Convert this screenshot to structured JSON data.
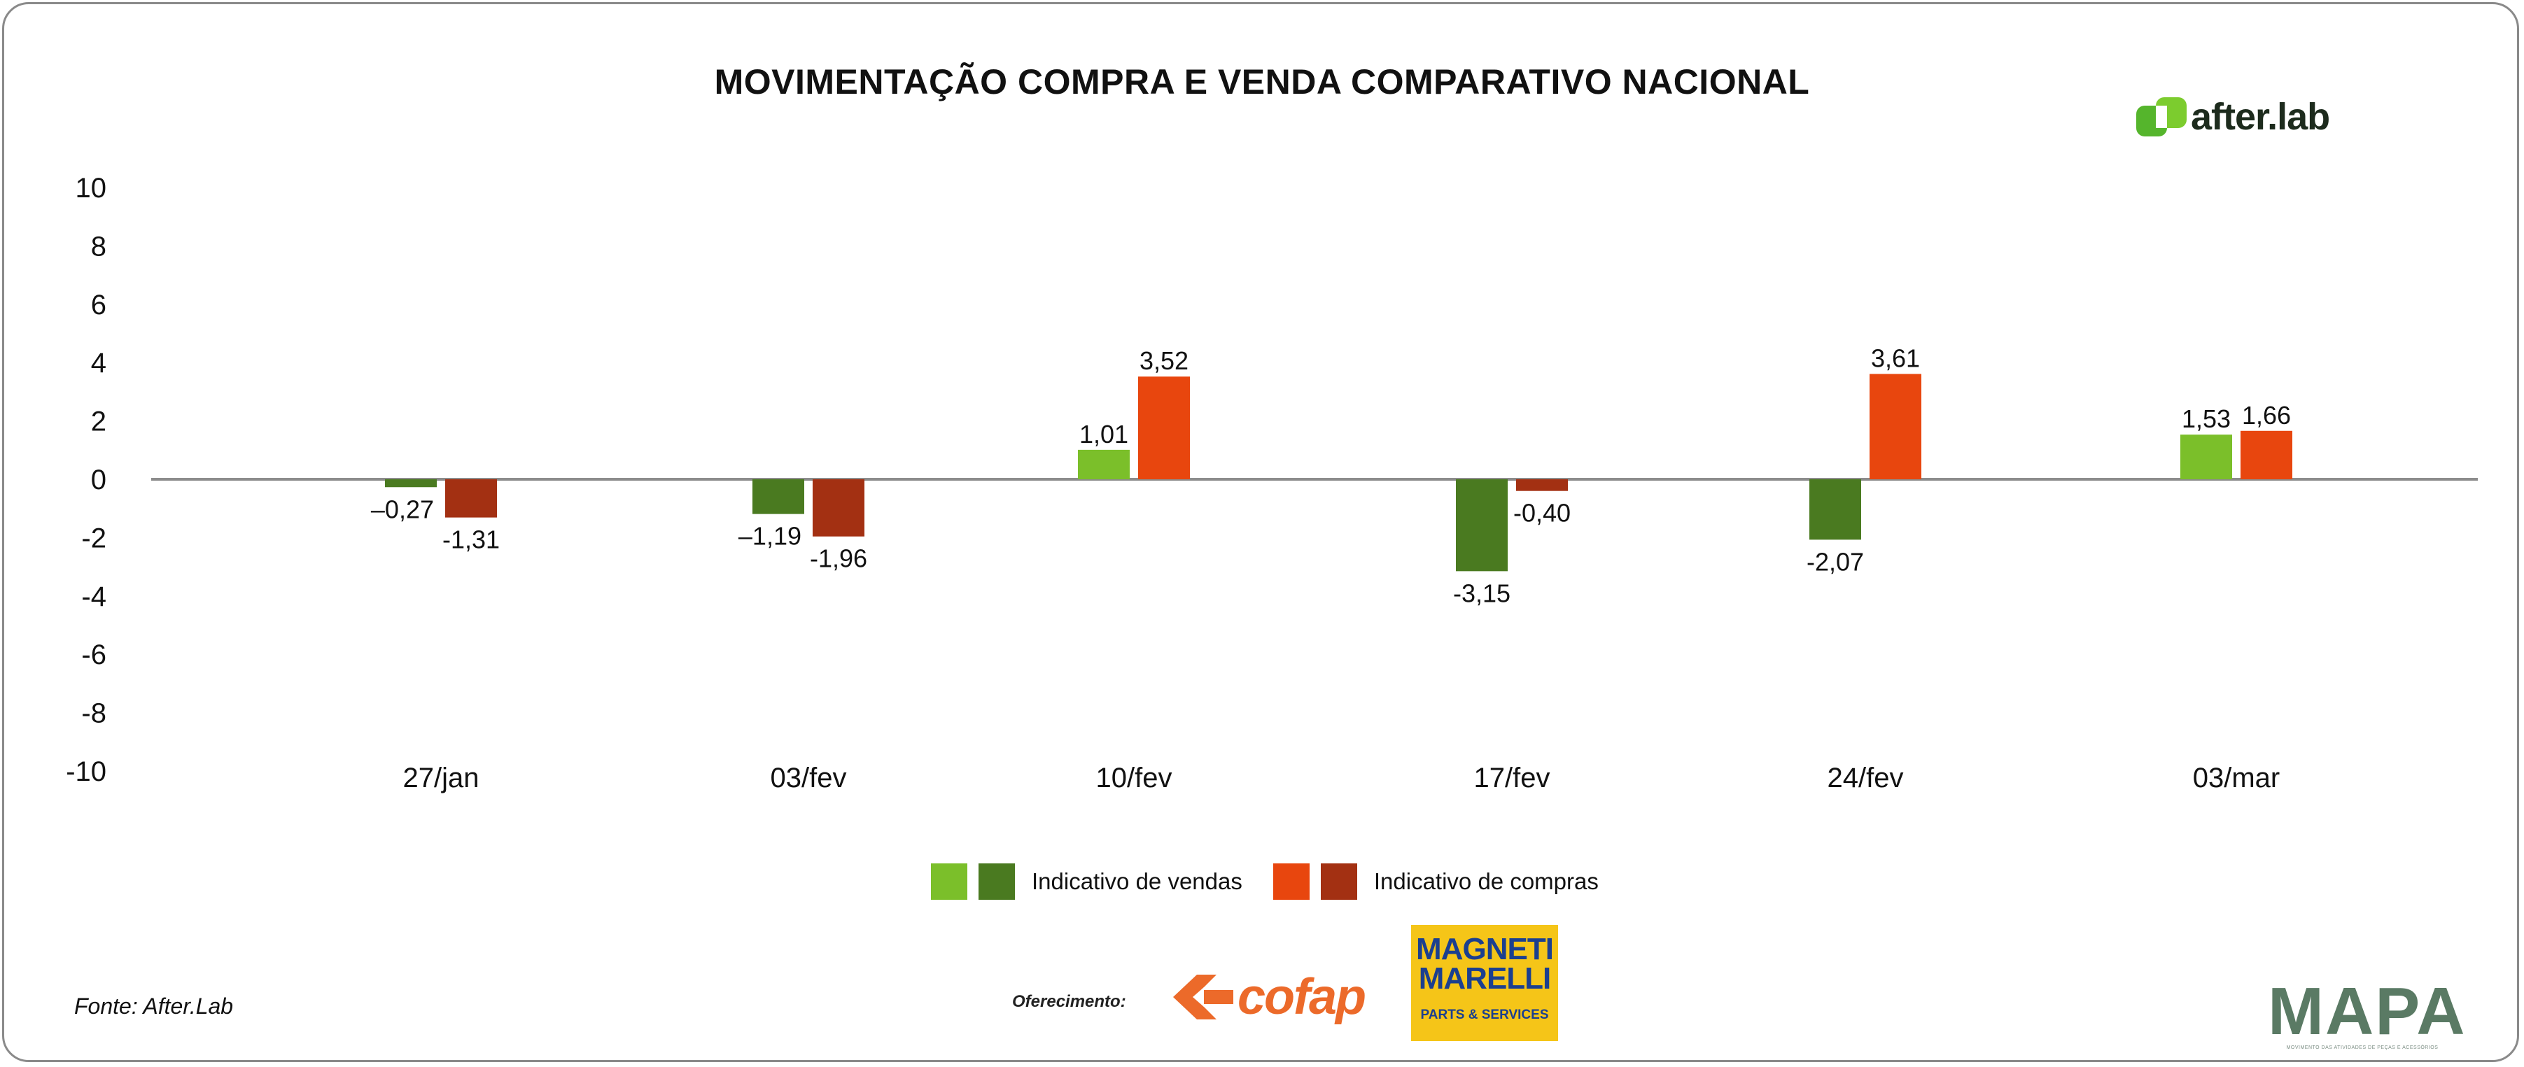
{
  "title": "MOVIMENTAÇÃO COMPRA E VENDA COMPARATIVO NACIONAL",
  "brand": {
    "name": "after.lab",
    "color": "#4caf2a"
  },
  "chart_data": {
    "type": "bar",
    "categories": [
      "27/jan",
      "03/fev",
      "10/fev",
      "17/fev",
      "24/fev",
      "03/mar"
    ],
    "series": [
      {
        "name": "Indicativo de vendas",
        "values": [
          -0.27,
          -1.19,
          1.01,
          -3.15,
          -2.07,
          1.53
        ],
        "labels": [
          "–0,27",
          "–1,19",
          "1,01",
          "-3,15",
          "-2,07",
          "1,53"
        ],
        "color_up": "#7bbf2a",
        "color_down": "#4a7a20"
      },
      {
        "name": "Indicativo de compras",
        "values": [
          -1.31,
          -1.96,
          3.52,
          -0.4,
          3.61,
          1.66
        ],
        "labels": [
          "-1,31",
          "-1,96",
          "3,52",
          "-0,40",
          "3,61",
          "1,66"
        ],
        "color_up": "#e8460e",
        "color_down": "#a33012"
      }
    ],
    "yticks": [
      "10",
      "8",
      "6",
      "4",
      "2",
      "0",
      "-2",
      "-4",
      "-6",
      "-8",
      "-10"
    ],
    "ylim": [
      -10,
      10
    ],
    "xlabel": "",
    "ylabel": ""
  },
  "legend": {
    "vendas_label": "Indicativo de vendas",
    "compras_label": "Indicativo de compras",
    "vendas_colors": [
      "#7bbf2a",
      "#4a7a20"
    ],
    "compras_colors": [
      "#e8460e",
      "#a33012"
    ]
  },
  "footer": {
    "source": "Fonte: After.Lab",
    "offer": "Oferecimento:",
    "cofap": "cofap",
    "magneti_line1": "MAGNETI",
    "magneti_line2": "MARELLI",
    "magneti_line3": "PARTS & SERVICES",
    "mapa": "MAPA",
    "mapa_sub": "MOVIMENTO DAS ATIVIDADES DE PEÇAS E ACESSÓRIOS"
  }
}
